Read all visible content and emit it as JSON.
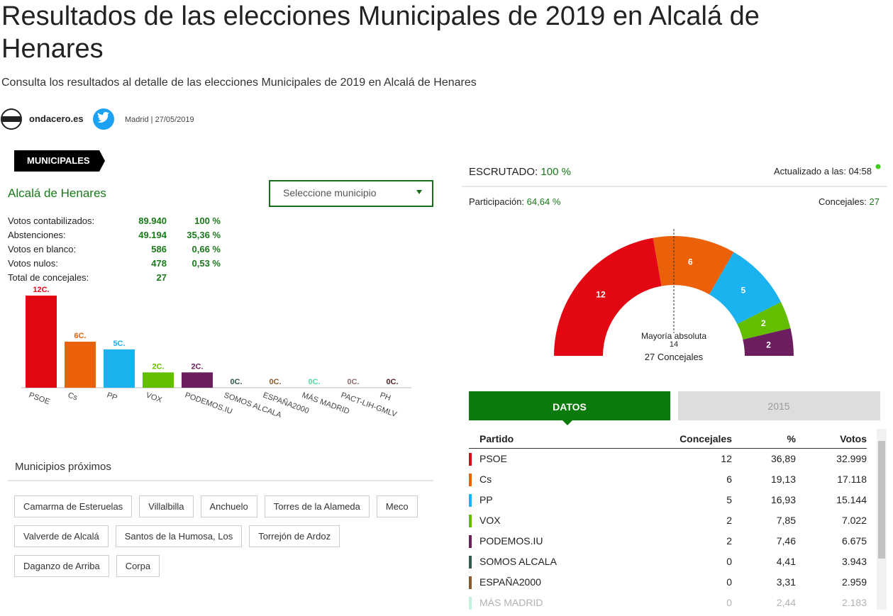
{
  "header": {
    "title": "Resultados de las elecciones Municipales de 2019 en Alcalá de Henares",
    "subtitle": "Consulta los resultados al detalle de las elecciones Municipales de 2019 en Alcalá de Henares",
    "source": "ondacero.es",
    "byline": "Madrid | 27/05/2019"
  },
  "left": {
    "tag": "MUNICIPALES",
    "municipality": "Alcalá de Henares",
    "select": "Seleccione municipio",
    "stats": [
      [
        "Votos contabilizados:",
        "89.940",
        "100 %"
      ],
      [
        "Abstenciones:",
        "49.194",
        "35,36 %"
      ],
      [
        "Votos en blanco:",
        "586",
        "0,66 %"
      ],
      [
        "Votos nulos:",
        "478",
        "0,53 %"
      ],
      [
        "Total de concejales:",
        "27"
      ]
    ]
  },
  "chart_data": [
    {
      "type": "bar",
      "categories": [
        "PSOE",
        "Cs",
        "PP",
        "VOX",
        "PODEMOS.IU",
        "SOMOS ALCALA",
        "ESPAÑA2000",
        "MÁS MADRID",
        "PACT-LIH-GMLV",
        "PH"
      ],
      "values": [
        12,
        6,
        5,
        2,
        2,
        0,
        0,
        0,
        0,
        0
      ],
      "value_labels": [
        "12C.",
        "6C.",
        "5C.",
        "2C.",
        "2C.",
        "0C.",
        "0C.",
        "0C.",
        "0C.",
        "0C."
      ],
      "colors": [
        "#e30613",
        "#eb6109",
        "#1ab2ef",
        "#63be00",
        "#6b1f5f",
        "#2f5a4c",
        "#8a5a2b",
        "#4ee0a0",
        "#8e6f6f",
        "#4a1f1f"
      ]
    },
    {
      "type": "hemicycle",
      "values": [
        12,
        6,
        5,
        2,
        2
      ],
      "colors": [
        "#e30613",
        "#eb6109",
        "#1ab2ef",
        "#63be00",
        "#6b1f5f"
      ],
      "annotation": "Mayoría absoluta",
      "majority": 14,
      "total_label": "27 Concejales"
    }
  ],
  "nearby": {
    "title": "Municipios próximos",
    "items": [
      "Camarma de Esteruelas",
      "Villalbilla",
      "Anchuelo",
      "Torres de la Alameda",
      "Meco",
      "Valverde de Alcalá",
      "Santos de la Humosa, Los",
      "Torrejón de Ardoz",
      "Daganzo de Arriba",
      "Corpa"
    ]
  },
  "right": {
    "scrutinized_label": "ESCRUTADO:",
    "scrutinized": "100 %",
    "updated": "Actualizado a las: 04:58",
    "participation_label": "Participación:",
    "participation": "64,64 %",
    "seats_label": "Concejales:",
    "seats": "27",
    "tabs": [
      "DATOS",
      "2015"
    ],
    "table": {
      "header": [
        "Partido",
        "Concejales",
        "%",
        "Votos"
      ],
      "rows": [
        [
          "PSOE",
          "12",
          "36,89",
          "32.999"
        ],
        [
          "Cs",
          "6",
          "19,13",
          "17.118"
        ],
        [
          "PP",
          "5",
          "16,93",
          "15.144"
        ],
        [
          "VOX",
          "2",
          "7,85",
          "7.022"
        ],
        [
          "PODEMOS.IU",
          "2",
          "7,46",
          "6.675"
        ],
        [
          "SOMOS ALCALA",
          "0",
          "4,41",
          "3.943"
        ],
        [
          "ESPAÑA2000",
          "0",
          "3,31",
          "2.959"
        ],
        [
          "MÁS MADRID",
          "0",
          "2,44",
          "2.183"
        ]
      ],
      "colors": [
        "#e30613",
        "#eb6109",
        "#1ab2ef",
        "#63be00",
        "#6b1f5f",
        "#2f5a4c",
        "#8a5a2b",
        "#4ee0a0"
      ]
    }
  }
}
